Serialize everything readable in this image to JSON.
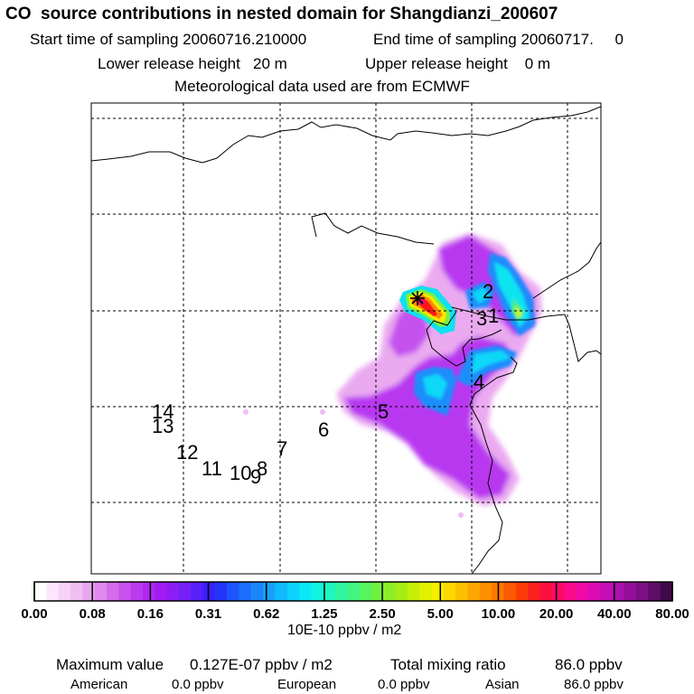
{
  "header": {
    "title": "CO  source contributions in nested domain for Shangdianzi_200607",
    "start_sampling": "Start time of sampling 20060716.210000",
    "end_sampling": "End time of sampling 20060717.     0",
    "lower_release": "Lower release height   20 m",
    "upper_release": "Upper release height    0 m",
    "met_data": "Meteorological data used are from ECMWF"
  },
  "chart_data": {
    "type": "heatmap",
    "title": "CO  source contributions in nested domain for Shangdianzi_200607",
    "grid": true,
    "map_labels": [
      "14",
      "13",
      "12",
      "11",
      "10",
      "9",
      "8",
      "7",
      "6",
      "5",
      "4",
      "3",
      "2",
      "1"
    ],
    "colorbar": {
      "ticks": [
        "0.00",
        "0.08",
        "0.16",
        "0.31",
        "0.62",
        "1.25",
        "2.50",
        "5.00",
        "10.00",
        "20.00",
        "40.00",
        "80.00"
      ],
      "units": "10E-10 ppbv / m2",
      "colors": [
        "#ffffff",
        "#fbe6fb",
        "#f6d2f6",
        "#f0bef0",
        "#e9a6ee",
        "#df8aec",
        "#d46ceb",
        "#c752ec",
        "#bb3aee",
        "#b028f0",
        "#a11cf2",
        "#8c1ef5",
        "#7620f8",
        "#5a20fa",
        "#3a20fb",
        "#2236fc",
        "#1c56fc",
        "#1a6efc",
        "#1a86fc",
        "#16a0fc",
        "#10bafc",
        "#0cd2fc",
        "#08e8f8",
        "#10f4e0",
        "#20f6c0",
        "#30f6a0",
        "#40f680",
        "#56f460",
        "#70f040",
        "#8cee28",
        "#a8ec16",
        "#c6ee08",
        "#e2f000",
        "#f8ee00",
        "#fcd800",
        "#fcc000",
        "#fca800",
        "#fc9000",
        "#fc7800",
        "#fc5a00",
        "#fc3c08",
        "#fc2020",
        "#fc1040",
        "#fc0a66",
        "#fc0a8c",
        "#f00aa8",
        "#dc0cb4",
        "#c40eb4",
        "#aa10ae",
        "#921098",
        "#7a1082",
        "#5e0e66",
        "#420a48"
      ]
    },
    "max_value": "0.127E-07 ppbv / m2",
    "total_mixing_ratio": "86.0 ppbv"
  },
  "footer": {
    "max_label": "Maximum value",
    "max_value": "0.127E-07 ppbv / m2",
    "total_label": "Total mixing ratio",
    "total_value": "86.0 ppbv",
    "american_label": "American",
    "american_value": "0.0 ppbv",
    "european_label": "European",
    "european_value": "0.0 ppbv",
    "asian_label": "Asian",
    "asian_value": "86.0 ppbv"
  }
}
